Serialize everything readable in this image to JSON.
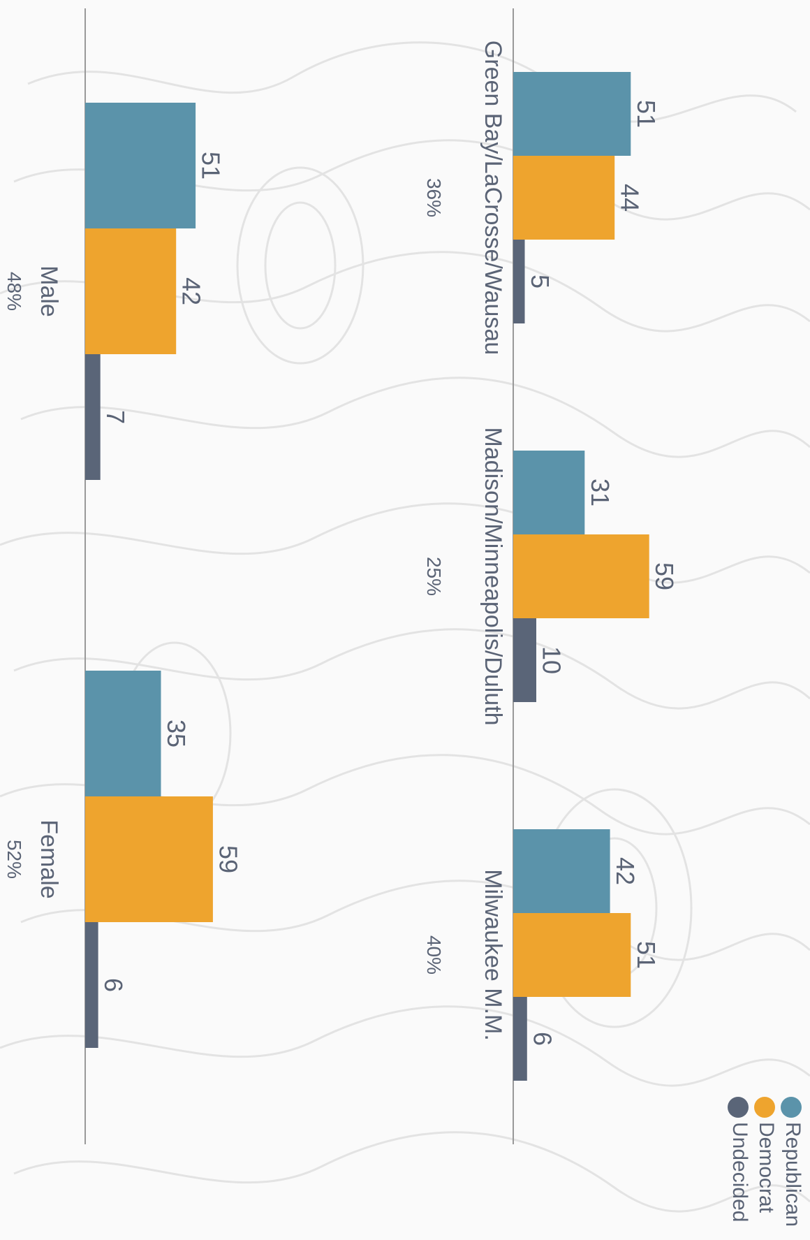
{
  "chart_data": [
    {
      "type": "bar",
      "orientation": "horizontal",
      "categories": [
        "Green Bay/LaCrosse/Wausau",
        "Madison/Minneapolis/Duluth",
        "Milwaukee M.M."
      ],
      "category_shares": [
        "36%",
        "25%",
        "40%"
      ],
      "series": [
        {
          "name": "Republican",
          "values": [
            51,
            31,
            42
          ]
        },
        {
          "name": "Democrat",
          "values": [
            44,
            59,
            51
          ]
        },
        {
          "name": "Undecided",
          "values": [
            5,
            10,
            6
          ]
        }
      ]
    },
    {
      "type": "bar",
      "orientation": "horizontal",
      "categories": [
        "Male",
        "Female"
      ],
      "category_shares": [
        "48%",
        "52%"
      ],
      "series": [
        {
          "name": "Republican",
          "values": [
            51,
            35
          ]
        },
        {
          "name": "Democrat",
          "values": [
            42,
            59
          ]
        },
        {
          "name": "Undecided",
          "values": [
            7,
            6
          ]
        }
      ]
    }
  ],
  "legend": [
    {
      "name": "Republican",
      "color": "#5b93aa"
    },
    {
      "name": "Democrat",
      "color": "#eea42e"
    },
    {
      "name": "Undecided",
      "color": "#5a6578"
    }
  ],
  "colors": {
    "republican": "#5b93aa",
    "democrat": "#eea42e",
    "undecided": "#5a6578",
    "axis": "#999999",
    "text": "#5a6375"
  }
}
